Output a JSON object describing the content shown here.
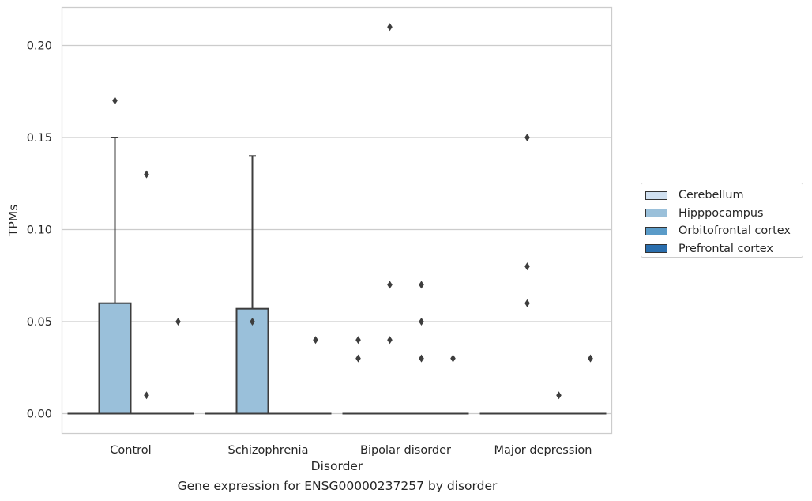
{
  "chart_data": {
    "type": "box",
    "title": "",
    "caption": "Gene expression for ENSG00000237257 by disorder",
    "xlabel": "Disorder",
    "ylabel": "TPMs",
    "ylim": [
      -0.01,
      0.22
    ],
    "yticks": [
      0.0,
      0.05,
      0.1,
      0.15,
      0.2
    ],
    "ytick_labels": [
      "0.00",
      "0.05",
      "0.10",
      "0.15",
      "0.20"
    ],
    "grid": "horizontal",
    "legend_position": "right",
    "categories": [
      "Control",
      "Schizophrenia",
      "Bipolar disorder",
      "Major depression"
    ],
    "series": [
      {
        "name": "Cerebellum",
        "color": "#d0e0f0",
        "boxes": [
          {
            "q1": 0,
            "median": 0,
            "q3": 0,
            "whisker_low": 0,
            "whisker_high": 0,
            "outliers": []
          },
          {
            "q1": 0,
            "median": 0,
            "q3": 0,
            "whisker_low": 0,
            "whisker_high": 0,
            "outliers": []
          },
          {
            "q1": 0,
            "median": 0,
            "q3": 0,
            "whisker_low": 0,
            "whisker_high": 0,
            "outliers": [
              0.03,
              0.04
            ]
          },
          {
            "q1": 0,
            "median": 0,
            "q3": 0,
            "whisker_low": 0,
            "whisker_high": 0,
            "outliers": []
          }
        ]
      },
      {
        "name": "Hipppocampus",
        "color": "#9ac0da",
        "boxes": [
          {
            "q1": 0,
            "median": 0,
            "q3": 0.06,
            "whisker_low": 0,
            "whisker_high": 0.15,
            "outliers": [
              0.17
            ]
          },
          {
            "q1": 0,
            "median": 0,
            "q3": 0.057,
            "whisker_low": 0,
            "whisker_high": 0.14,
            "outliers": [
              0.05
            ]
          },
          {
            "q1": 0,
            "median": 0,
            "q3": 0,
            "whisker_low": 0,
            "whisker_high": 0,
            "outliers": [
              0.21,
              0.07,
              0.04
            ]
          },
          {
            "q1": 0,
            "median": 0,
            "q3": 0,
            "whisker_low": 0,
            "whisker_high": 0,
            "outliers": [
              0.15,
              0.08,
              0.06
            ]
          }
        ]
      },
      {
        "name": "Orbitofrontal cortex",
        "color": "#5a9bc8",
        "boxes": [
          {
            "q1": 0,
            "median": 0,
            "q3": 0,
            "whisker_low": 0,
            "whisker_high": 0,
            "outliers": [
              0.13,
              0.01
            ]
          },
          {
            "q1": 0,
            "median": 0,
            "q3": 0,
            "whisker_low": 0,
            "whisker_high": 0,
            "outliers": []
          },
          {
            "q1": 0,
            "median": 0,
            "q3": 0,
            "whisker_low": 0,
            "whisker_high": 0,
            "outliers": [
              0.07,
              0.05,
              0.03
            ]
          },
          {
            "q1": 0,
            "median": 0,
            "q3": 0,
            "whisker_low": 0,
            "whisker_high": 0,
            "outliers": [
              0.01
            ]
          }
        ]
      },
      {
        "name": "Prefrontal cortex",
        "color": "#2a6ead",
        "boxes": [
          {
            "q1": 0,
            "median": 0,
            "q3": 0,
            "whisker_low": 0,
            "whisker_high": 0,
            "outliers": [
              0.05
            ]
          },
          {
            "q1": 0,
            "median": 0,
            "q3": 0,
            "whisker_low": 0,
            "whisker_high": 0,
            "outliers": [
              0.04
            ]
          },
          {
            "q1": 0,
            "median": 0,
            "q3": 0,
            "whisker_low": 0,
            "whisker_high": 0,
            "outliers": [
              0.03
            ]
          },
          {
            "q1": 0,
            "median": 0,
            "q3": 0,
            "whisker_low": 0,
            "whisker_high": 0,
            "outliers": [
              0.03
            ]
          }
        ]
      }
    ]
  }
}
